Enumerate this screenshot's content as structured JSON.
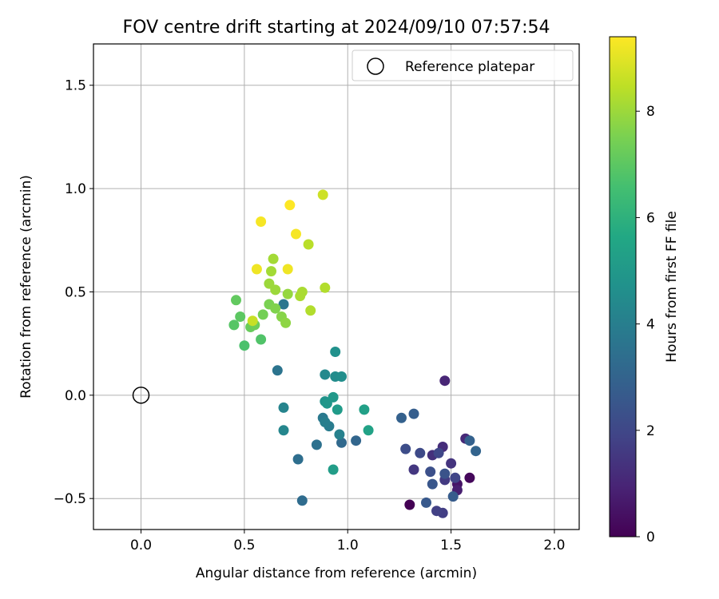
{
  "chart_data": {
    "type": "scatter",
    "title": "FOV centre drift starting at 2024/09/10 07:57:54",
    "xlabel": "Angular distance from reference (arcmin)",
    "ylabel": "Rotation from reference (arcmin)",
    "xlim": [
      -0.23,
      2.12
    ],
    "ylim": [
      -0.65,
      1.7
    ],
    "xticks": [
      0.0,
      0.5,
      1.0,
      1.5,
      2.0
    ],
    "xtick_labels": [
      "0.0",
      "0.5",
      "1.0",
      "1.5",
      "2.0"
    ],
    "yticks": [
      -0.5,
      0.0,
      0.5,
      1.0,
      1.5
    ],
    "ytick_labels": [
      "−0.5",
      "0.0",
      "0.5",
      "1.0",
      "1.5"
    ],
    "grid": true,
    "legend": {
      "position": "top-right",
      "entries": [
        "Reference platepar"
      ]
    },
    "reference_point": {
      "x": 0.0,
      "y": 0.0,
      "label": "Reference platepar"
    },
    "colorbar": {
      "label": "Hours from first FF file",
      "range": [
        0,
        9.4
      ],
      "ticks": [
        0,
        2,
        4,
        6,
        8
      ],
      "tick_labels": [
        "0",
        "2",
        "4",
        "6",
        "8"
      ],
      "colormap": "viridis"
    },
    "points": [
      {
        "x": 1.3,
        "y": -0.53,
        "c": 0.0
      },
      {
        "x": 1.59,
        "y": -0.4,
        "c": 0.2
      },
      {
        "x": 1.53,
        "y": -0.43,
        "c": 0.5
      },
      {
        "x": 1.53,
        "y": -0.46,
        "c": 0.8
      },
      {
        "x": 1.47,
        "y": 0.07,
        "c": 1.0
      },
      {
        "x": 1.57,
        "y": -0.21,
        "c": 1.1
      },
      {
        "x": 1.46,
        "y": -0.25,
        "c": 1.2
      },
      {
        "x": 1.41,
        "y": -0.29,
        "c": 1.3
      },
      {
        "x": 1.5,
        "y": -0.33,
        "c": 1.4
      },
      {
        "x": 1.32,
        "y": -0.36,
        "c": 1.5
      },
      {
        "x": 1.47,
        "y": -0.41,
        "c": 1.6
      },
      {
        "x": 1.46,
        "y": -0.57,
        "c": 1.7
      },
      {
        "x": 1.43,
        "y": -0.56,
        "c": 1.8
      },
      {
        "x": 1.52,
        "y": -0.4,
        "c": 1.9
      },
      {
        "x": 1.44,
        "y": -0.28,
        "c": 2.0
      },
      {
        "x": 1.35,
        "y": -0.28,
        "c": 2.1
      },
      {
        "x": 1.28,
        "y": -0.26,
        "c": 2.2
      },
      {
        "x": 1.4,
        "y": -0.37,
        "c": 2.3
      },
      {
        "x": 1.47,
        "y": -0.38,
        "c": 2.4
      },
      {
        "x": 1.41,
        "y": -0.43,
        "c": 2.5
      },
      {
        "x": 1.38,
        "y": -0.52,
        "c": 2.6
      },
      {
        "x": 1.51,
        "y": -0.49,
        "c": 2.7
      },
      {
        "x": 1.32,
        "y": -0.09,
        "c": 2.8
      },
      {
        "x": 1.26,
        "y": -0.11,
        "c": 2.9
      },
      {
        "x": 1.59,
        "y": -0.22,
        "c": 2.9
      },
      {
        "x": 1.62,
        "y": -0.27,
        "c": 3.0
      },
      {
        "x": 1.04,
        "y": -0.22,
        "c": 3.1
      },
      {
        "x": 0.97,
        "y": -0.23,
        "c": 3.2
      },
      {
        "x": 0.78,
        "y": -0.51,
        "c": 3.3
      },
      {
        "x": 0.76,
        "y": -0.31,
        "c": 3.4
      },
      {
        "x": 0.85,
        "y": -0.24,
        "c": 3.5
      },
      {
        "x": 0.66,
        "y": 0.12,
        "c": 3.6
      },
      {
        "x": 0.69,
        "y": 0.44,
        "c": 3.7
      },
      {
        "x": 0.88,
        "y": -0.11,
        "c": 3.8
      },
      {
        "x": 0.91,
        "y": -0.15,
        "c": 3.9
      },
      {
        "x": 0.89,
        "y": -0.13,
        "c": 4.0
      },
      {
        "x": 0.96,
        "y": -0.19,
        "c": 4.1
      },
      {
        "x": 0.69,
        "y": -0.06,
        "c": 4.2
      },
      {
        "x": 0.69,
        "y": -0.17,
        "c": 4.3
      },
      {
        "x": 0.89,
        "y": 0.1,
        "c": 4.4
      },
      {
        "x": 0.94,
        "y": 0.09,
        "c": 4.5
      },
      {
        "x": 0.97,
        "y": 0.09,
        "c": 4.6
      },
      {
        "x": 0.94,
        "y": 0.21,
        "c": 4.7
      },
      {
        "x": 0.89,
        "y": -0.03,
        "c": 4.8
      },
      {
        "x": 0.9,
        "y": -0.04,
        "c": 4.9
      },
      {
        "x": 0.93,
        "y": -0.01,
        "c": 5.0
      },
      {
        "x": 0.95,
        "y": -0.07,
        "c": 5.1
      },
      {
        "x": 0.93,
        "y": -0.36,
        "c": 5.2
      },
      {
        "x": 1.08,
        "y": -0.07,
        "c": 5.3
      },
      {
        "x": 1.1,
        "y": -0.17,
        "c": 5.4
      },
      {
        "x": 0.5,
        "y": 0.24,
        "c": 6.7
      },
      {
        "x": 0.58,
        "y": 0.27,
        "c": 6.8
      },
      {
        "x": 0.45,
        "y": 0.34,
        "c": 6.9
      },
      {
        "x": 0.48,
        "y": 0.38,
        "c": 7.0
      },
      {
        "x": 0.46,
        "y": 0.46,
        "c": 7.1
      },
      {
        "x": 0.53,
        "y": 0.33,
        "c": 7.2
      },
      {
        "x": 0.55,
        "y": 0.34,
        "c": 7.3
      },
      {
        "x": 0.59,
        "y": 0.39,
        "c": 7.4
      },
      {
        "x": 0.62,
        "y": 0.44,
        "c": 7.5
      },
      {
        "x": 0.65,
        "y": 0.42,
        "c": 7.6
      },
      {
        "x": 0.68,
        "y": 0.38,
        "c": 7.7
      },
      {
        "x": 0.7,
        "y": 0.35,
        "c": 7.8
      },
      {
        "x": 0.71,
        "y": 0.49,
        "c": 7.9
      },
      {
        "x": 0.62,
        "y": 0.54,
        "c": 8.0
      },
      {
        "x": 0.65,
        "y": 0.51,
        "c": 8.0
      },
      {
        "x": 0.63,
        "y": 0.6,
        "c": 8.1
      },
      {
        "x": 0.64,
        "y": 0.66,
        "c": 8.1
      },
      {
        "x": 0.77,
        "y": 0.48,
        "c": 8.2
      },
      {
        "x": 0.78,
        "y": 0.5,
        "c": 8.2
      },
      {
        "x": 0.82,
        "y": 0.41,
        "c": 8.3
      },
      {
        "x": 0.89,
        "y": 0.52,
        "c": 8.3
      },
      {
        "x": 0.81,
        "y": 0.73,
        "c": 8.4
      },
      {
        "x": 0.54,
        "y": 0.36,
        "c": 8.6
      },
      {
        "x": 0.88,
        "y": 0.97,
        "c": 8.7
      },
      {
        "x": 0.56,
        "y": 0.61,
        "c": 9.2
      },
      {
        "x": 0.71,
        "y": 0.61,
        "c": 9.2
      },
      {
        "x": 0.58,
        "y": 0.84,
        "c": 9.3
      },
      {
        "x": 0.75,
        "y": 0.78,
        "c": 9.3
      },
      {
        "x": 0.72,
        "y": 0.92,
        "c": 9.4
      }
    ]
  }
}
